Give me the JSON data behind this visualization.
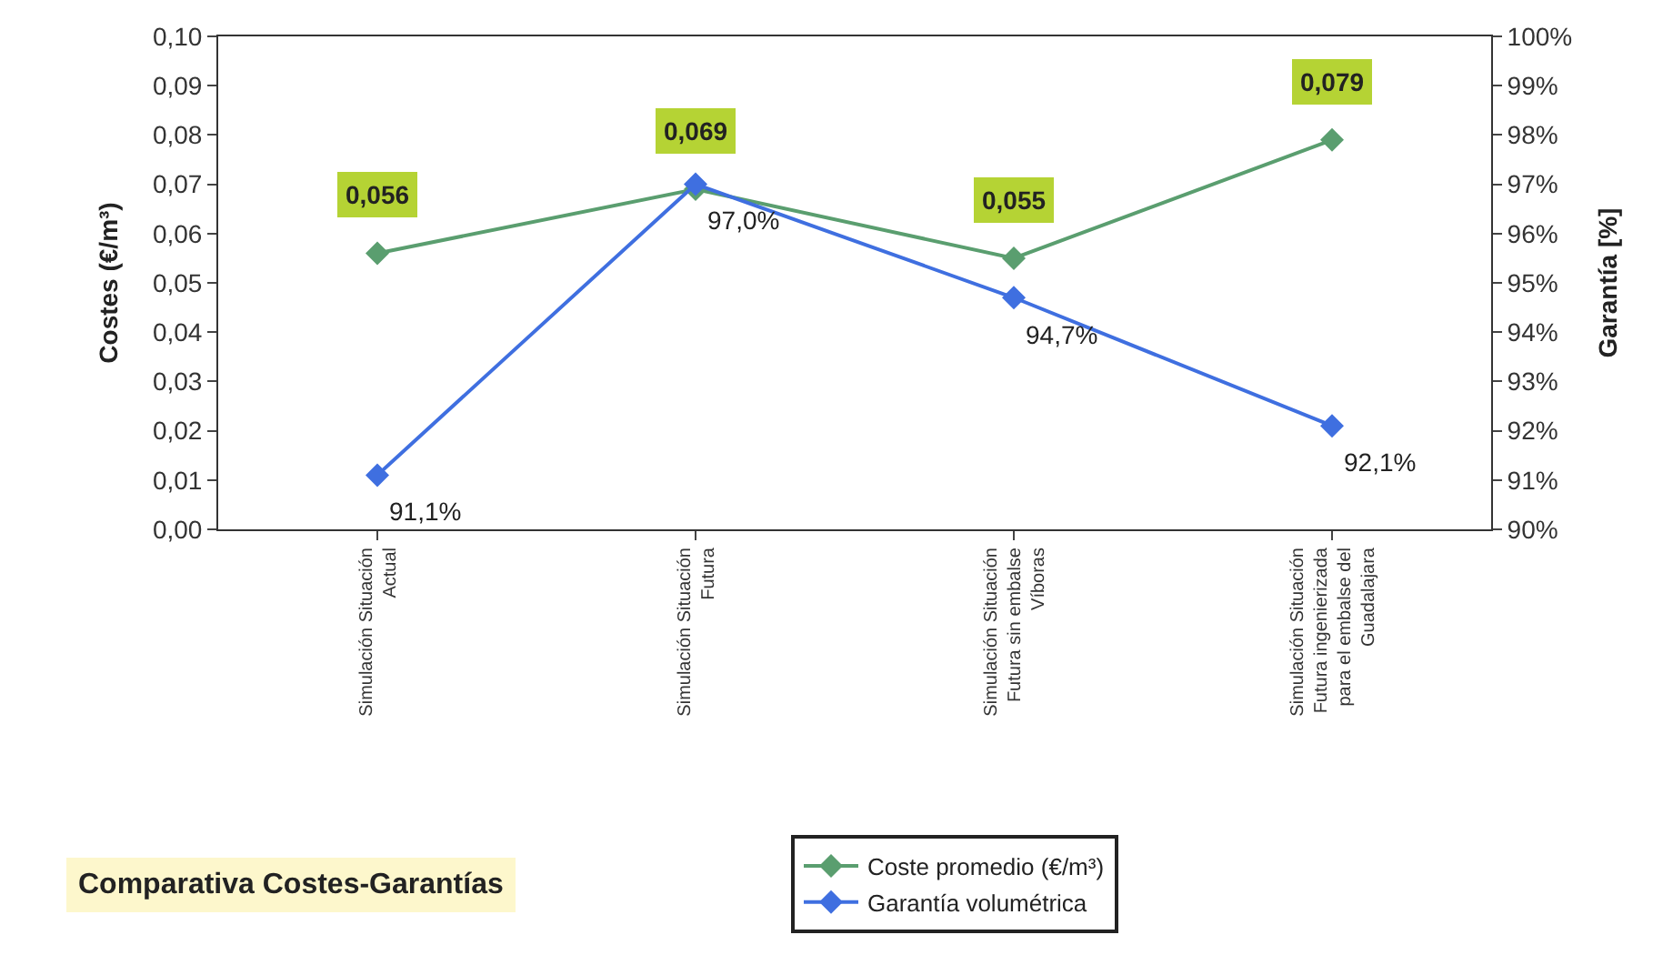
{
  "chart_data": {
    "type": "line",
    "ylabel": "Costes (€/m³)",
    "y2label": "Garantía [%]",
    "categories": [
      "Simulación Situación Actual",
      "Simulación Situación Futura",
      "Simulación Situación Futura sin embalse Víboras",
      "Simulación Situación Futura ingenierizada para el embalse del Guadalajara"
    ],
    "series": [
      {
        "name": "Coste promedio (€/m³)",
        "color": "#5a9e6f",
        "values": [
          0.056,
          0.069,
          0.055,
          0.079
        ],
        "value_labels": [
          "0,056",
          "0,069",
          "0,055",
          "0,079"
        ]
      },
      {
        "name": "Garantía volumétrica",
        "color": "#3f6fe0",
        "axis": "y2",
        "values": [
          91.1,
          97.0,
          94.7,
          92.1
        ],
        "value_labels": [
          "91,1%",
          "97,0%",
          "94,7%",
          "92,1%"
        ]
      }
    ],
    "ylim": [
      0,
      0.1
    ],
    "yticks": [
      {
        "value": 0,
        "label": "0,00"
      },
      {
        "value": 0.01,
        "label": "0,01"
      },
      {
        "value": 0.02,
        "label": "0,02"
      },
      {
        "value": 0.03,
        "label": "0,03"
      },
      {
        "value": 0.04,
        "label": "0,04"
      },
      {
        "value": 0.05,
        "label": "0,05"
      },
      {
        "value": 0.06,
        "label": "0,06"
      },
      {
        "value": 0.07,
        "label": "0,07"
      },
      {
        "value": 0.08,
        "label": "0,08"
      },
      {
        "value": 0.09,
        "label": "0,09"
      },
      {
        "value": 0.1,
        "label": "0,10"
      }
    ],
    "y2lim": [
      90,
      100
    ],
    "y2ticks": [
      {
        "value": 90,
        "label": "90%"
      },
      {
        "value": 91,
        "label": "91%"
      },
      {
        "value": 92,
        "label": "92%"
      },
      {
        "value": 93,
        "label": "93%"
      },
      {
        "value": 94,
        "label": "94%"
      },
      {
        "value": 95,
        "label": "95%"
      },
      {
        "value": 96,
        "label": "96%"
      },
      {
        "value": 97,
        "label": "97%"
      },
      {
        "value": 98,
        "label": "98%"
      },
      {
        "value": 99,
        "label": "99%"
      },
      {
        "value": 100,
        "label": "100%"
      }
    ],
    "marker": "diamond",
    "legend": "bottom",
    "annotations": [
      "Comparativa Costes-Garantías"
    ]
  }
}
